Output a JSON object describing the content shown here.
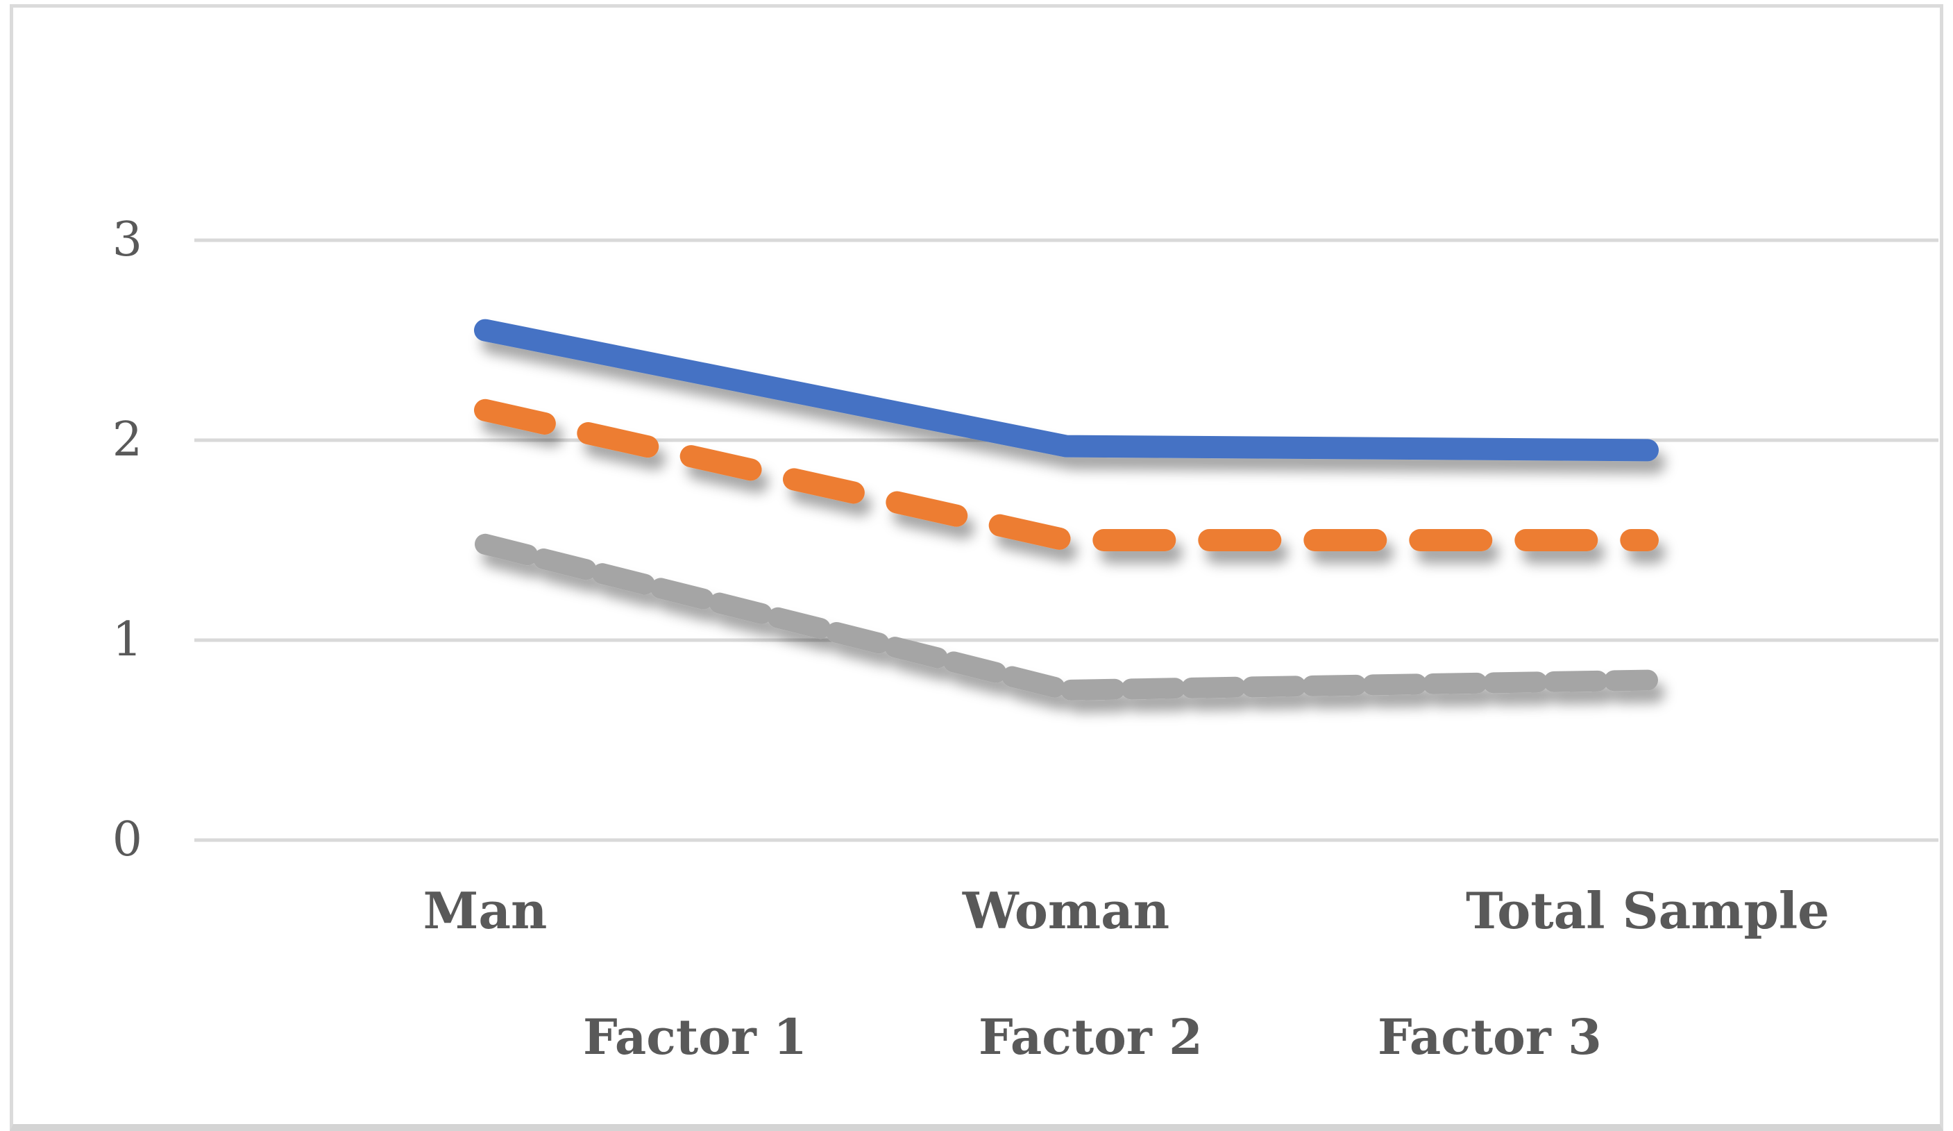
{
  "figure_kind": "spreadsheet-style line chart figure",
  "chart_data": {
    "type": "line",
    "title": "",
    "xlabel": "",
    "ylabel": "",
    "categories": [
      "Man",
      "Woman",
      "Total Sample"
    ],
    "series": [
      {
        "name": "Factor 1",
        "color": "#4472C4",
        "line_style": "solid",
        "values": [
          2.55,
          1.97,
          1.95
        ]
      },
      {
        "name": "Factor 2",
        "color": "#ED7D31",
        "line_style": "long-dash",
        "values": [
          2.15,
          1.5,
          1.5
        ]
      },
      {
        "name": "Factor 3",
        "color": "#A5A5A5",
        "line_style": "short-dash",
        "values": [
          1.48,
          0.75,
          0.8
        ]
      }
    ],
    "y_axis": {
      "min": 0,
      "max": 3,
      "tick_interval": 1,
      "tick_labels_top_to_bottom": [
        "3",
        "2",
        "1",
        "0"
      ]
    },
    "grid": true,
    "gridline_color": "#D9D9D9",
    "legend_position": "bottom",
    "text_color": "#595959",
    "background": "#FFFFFF",
    "frame_color": "#D9D9D9"
  }
}
